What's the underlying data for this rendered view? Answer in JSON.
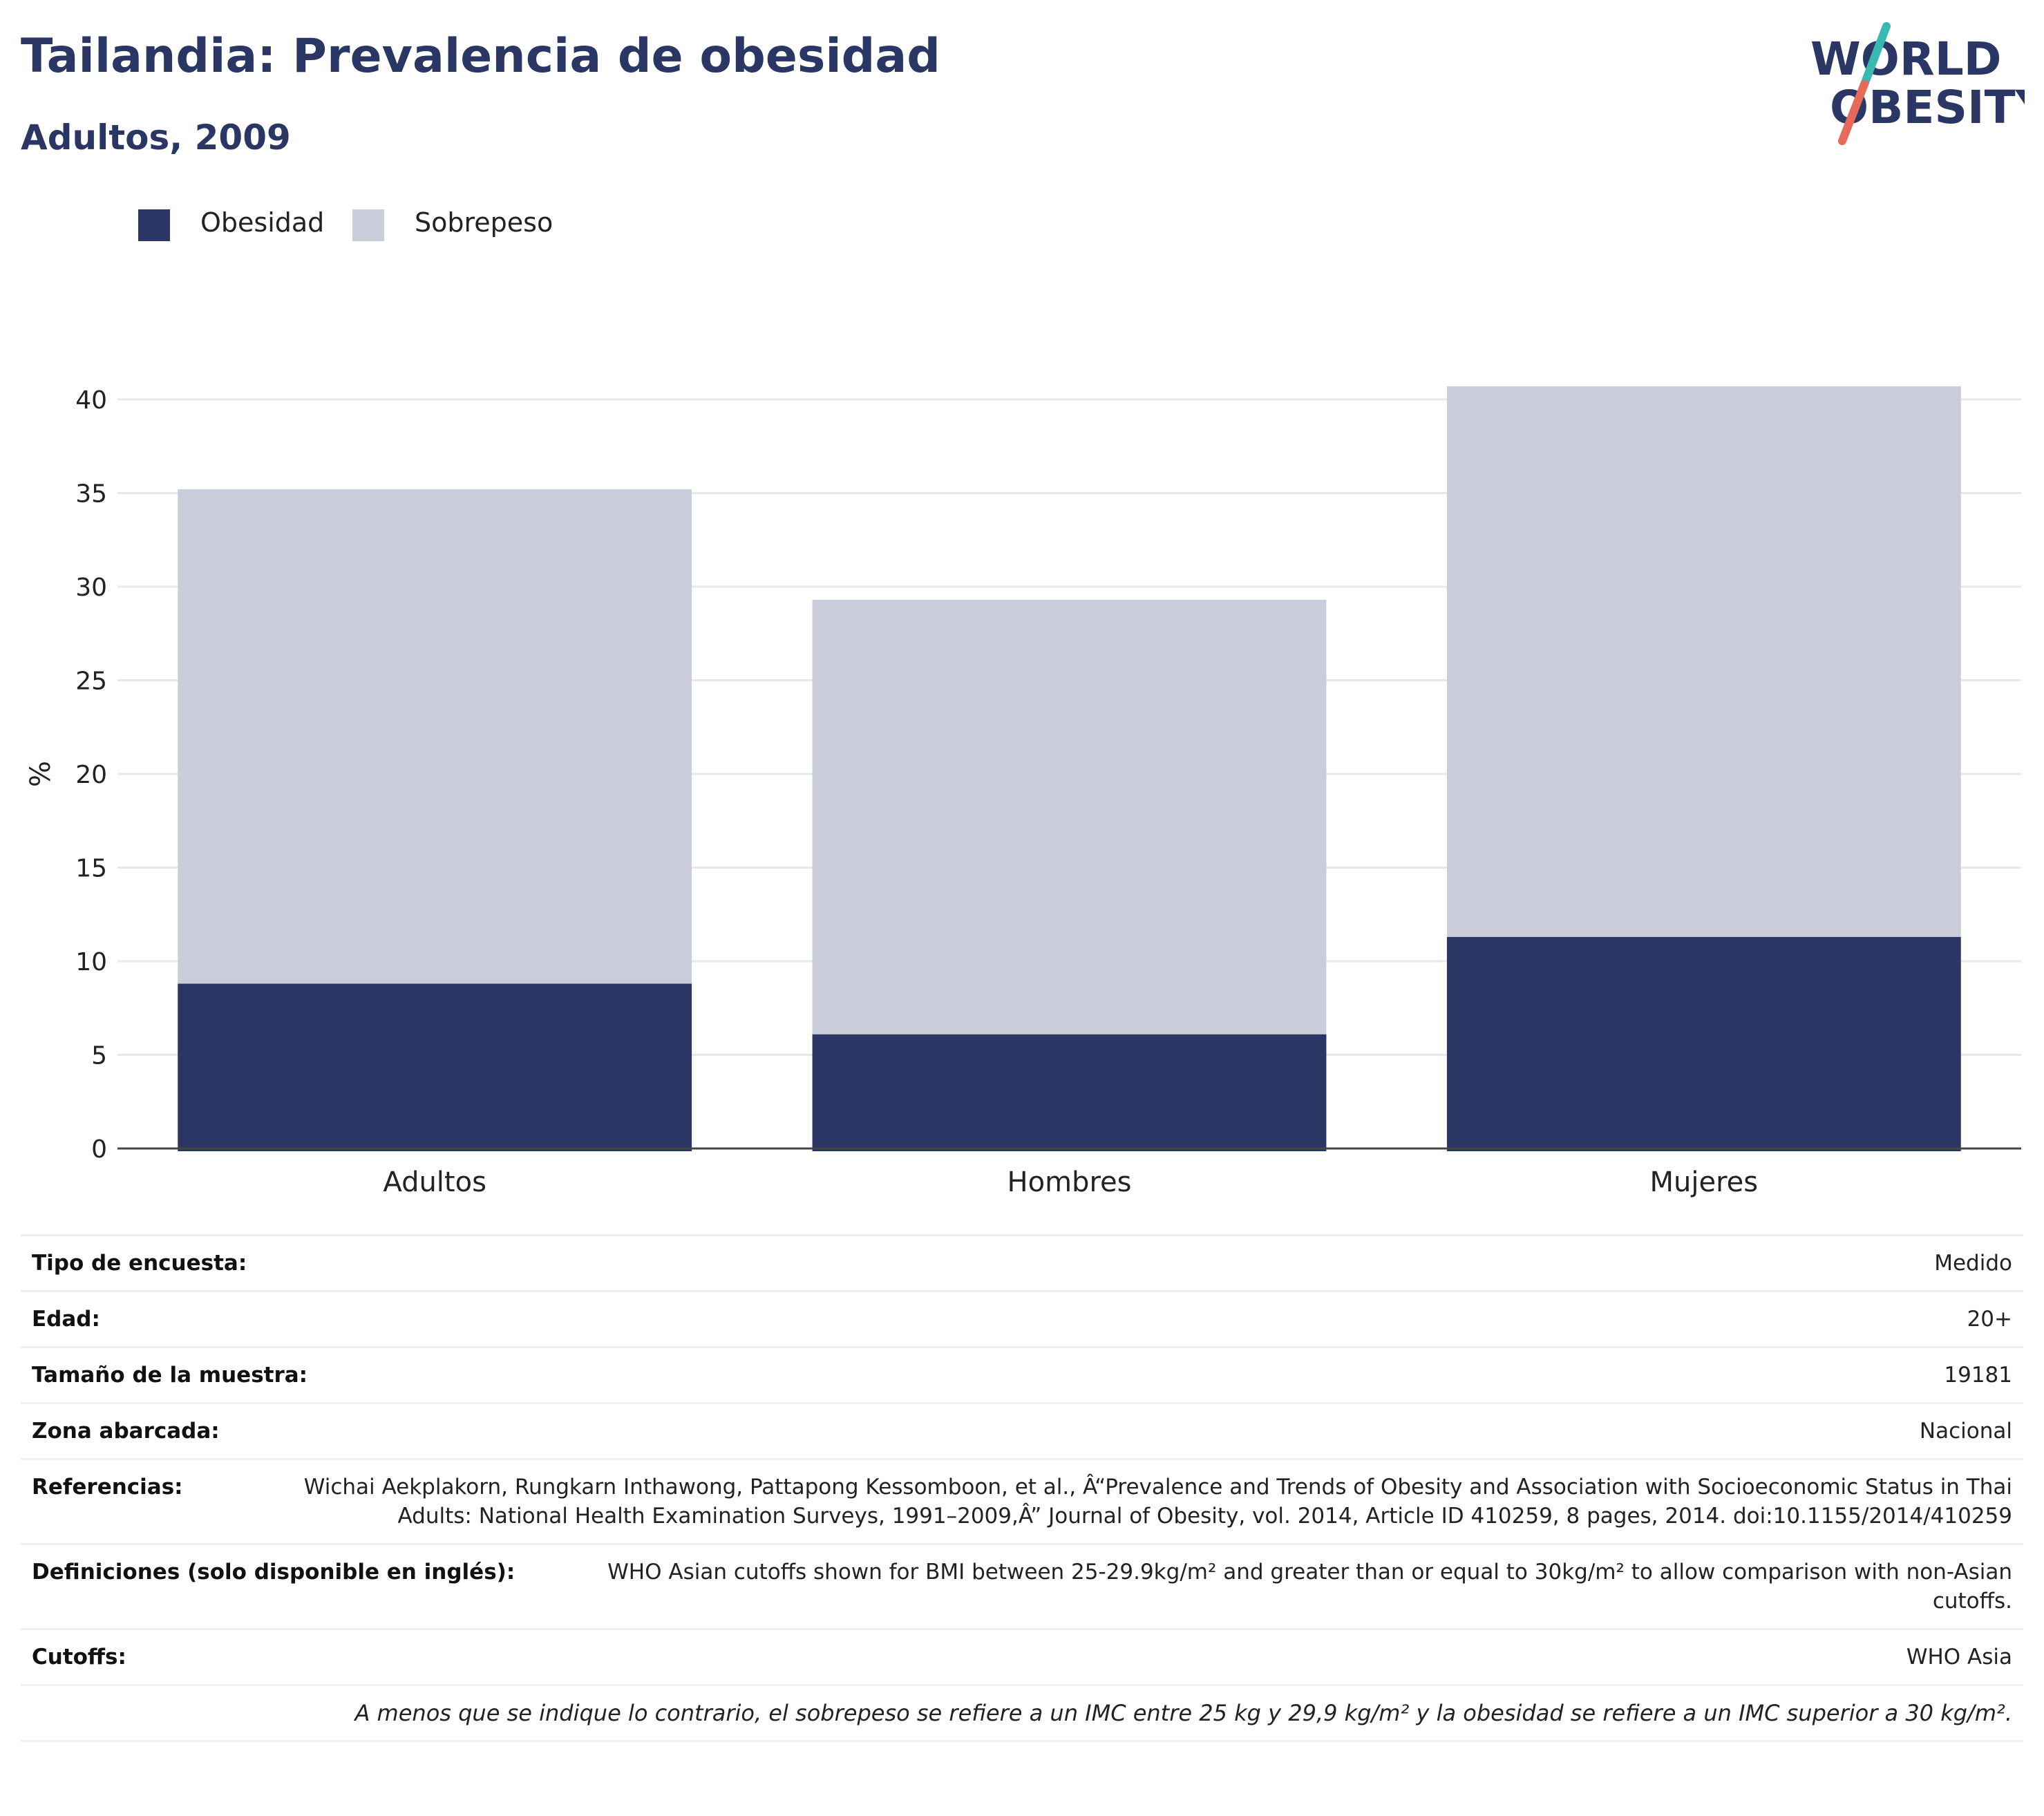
{
  "header": {
    "title": "Tailandia: Prevalencia de obesidad",
    "subtitle": "Adultos, 2009"
  },
  "logo": {
    "line1": "WORLD",
    "line2": "OBESITY",
    "text_color": "#2a3663",
    "accent_teal": "#3ab8b2",
    "accent_coral": "#e56a58"
  },
  "colors": {
    "obesity": "#2a3663",
    "overweight": "#cacdd9",
    "grid": "#e6e8ee",
    "axis": "#444444"
  },
  "legend": {
    "items": [
      {
        "label": "Obesidad",
        "color": "#2a3663"
      },
      {
        "label": "Sobrepeso",
        "color": "#cacdd9"
      }
    ],
    "placement": "top-left"
  },
  "chart_data": {
    "type": "bar",
    "stacked": true,
    "categories": [
      "Adultos",
      "Hombres",
      "Mujeres"
    ],
    "series": [
      {
        "name": "Obesidad",
        "values": [
          8.8,
          6.1,
          11.3
        ]
      },
      {
        "name": "Sobrepeso",
        "values": [
          26.4,
          23.2,
          29.4
        ]
      }
    ],
    "ylabel": "%",
    "ylim": [
      0,
      40
    ],
    "yticks": [
      0,
      5,
      10,
      15,
      20,
      25,
      30,
      35,
      40
    ],
    "grid": true
  },
  "info": {
    "rows": [
      {
        "label": "Tipo de encuesta:",
        "value": "Medido"
      },
      {
        "label": "Edad:",
        "value": "20+"
      },
      {
        "label": "Tamaño de la muestra:",
        "value": "19181"
      },
      {
        "label": "Zona abarcada:",
        "value": "Nacional"
      },
      {
        "label": "Referencias:",
        "value": "Wichai Aekplakorn, Rungkarn Inthawong, Pattapong Kessomboon, et al., Â“Prevalence and Trends of Obesity and Association with Socioeconomic Status in Thai Adults: National Health Examination Surveys, 1991–2009,Â” Journal of Obesity, vol. 2014, Article ID 410259, 8 pages, 2014. doi:10.1155/2014/410259"
      },
      {
        "label": "Definiciones (solo disponible en inglés):",
        "value": "WHO Asian cutoffs shown for BMI between 25-29.9kg/m²  and greater than or equal to 30kg/m² to allow comparison with non-Asian cutoffs."
      },
      {
        "label": "Cutoffs:",
        "value": "WHO Asia"
      }
    ],
    "note": "A menos que se indique lo contrario, el sobrepeso se refiere a un IMC entre 25 kg y 29,9 kg/m² y la obesidad se refiere a un IMC superior a 30 kg/m²."
  }
}
